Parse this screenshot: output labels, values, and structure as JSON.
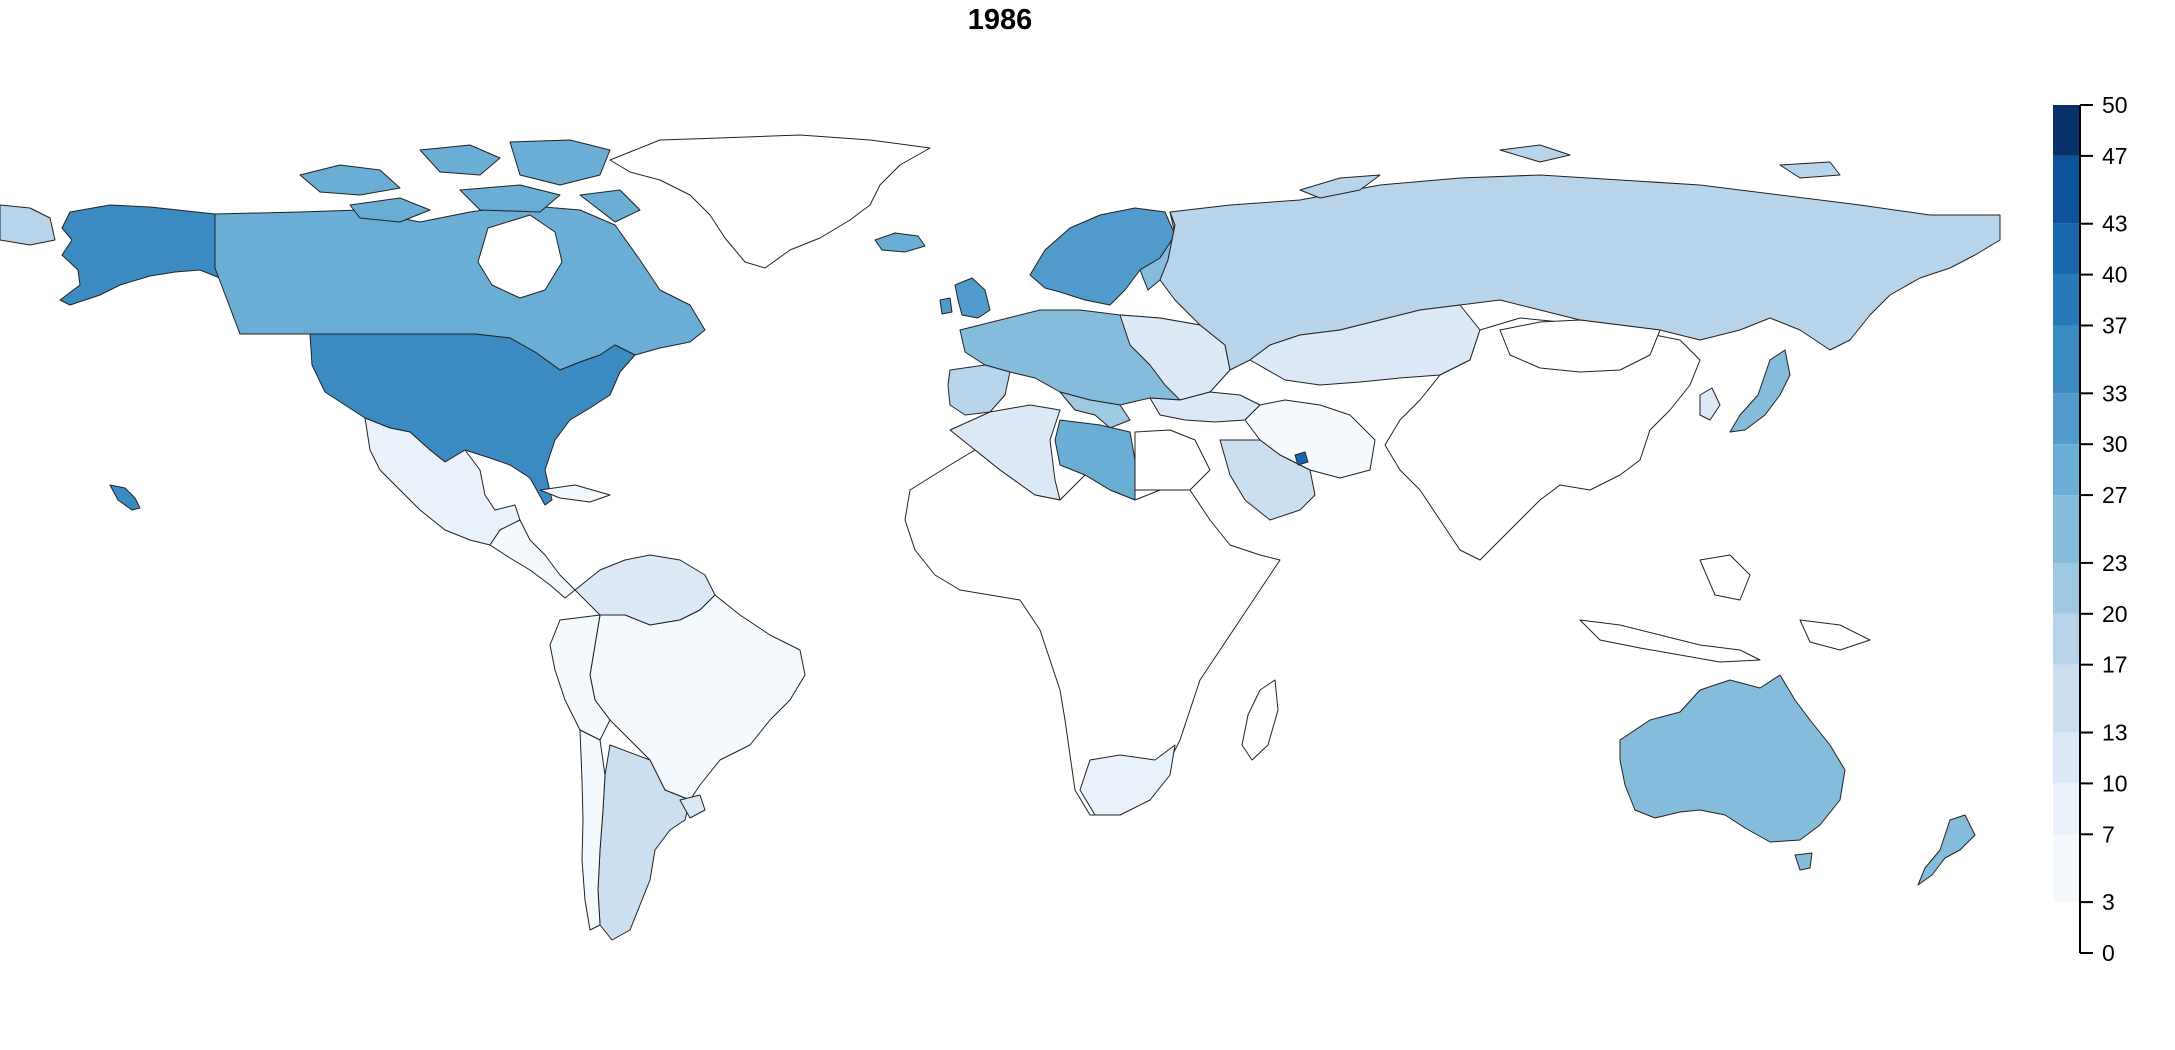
{
  "title": "1986",
  "legend": {
    "min": 0,
    "max": 50,
    "ticks": [
      {
        "value": 0,
        "label": "0"
      },
      {
        "value": 3,
        "label": "3"
      },
      {
        "value": 7,
        "label": "7"
      },
      {
        "value": 10,
        "label": "10"
      },
      {
        "value": 13,
        "label": "13"
      },
      {
        "value": 17,
        "label": "17"
      },
      {
        "value": 20,
        "label": "20"
      },
      {
        "value": 23,
        "label": "23"
      },
      {
        "value": 27,
        "label": "27"
      },
      {
        "value": 30,
        "label": "30"
      },
      {
        "value": 33,
        "label": "33"
      },
      {
        "value": 37,
        "label": "37"
      },
      {
        "value": 40,
        "label": "40"
      },
      {
        "value": 43,
        "label": "43"
      },
      {
        "value": 47,
        "label": "47"
      },
      {
        "value": 50,
        "label": "50"
      }
    ],
    "bins": [
      {
        "from": 3,
        "to": 7,
        "color": "#f4f9fe"
      },
      {
        "from": 7,
        "to": 10,
        "color": "#e9f2fb"
      },
      {
        "from": 10,
        "to": 13,
        "color": "#dbe9f6"
      },
      {
        "from": 13,
        "to": 17,
        "color": "#cbdff1"
      },
      {
        "from": 17,
        "to": 20,
        "color": "#b7d4ea"
      },
      {
        "from": 20,
        "to": 23,
        "color": "#9fc9e3"
      },
      {
        "from": 23,
        "to": 27,
        "color": "#85bcdc"
      },
      {
        "from": 27,
        "to": 30,
        "color": "#6aadd5"
      },
      {
        "from": 30,
        "to": 33,
        "color": "#519ccc"
      },
      {
        "from": 33,
        "to": 37,
        "color": "#3b8bc2"
      },
      {
        "from": 37,
        "to": 40,
        "color": "#2979b9"
      },
      {
        "from": 40,
        "to": 43,
        "color": "#1966ad"
      },
      {
        "from": 43,
        "to": 47,
        "color": "#0b539a"
      },
      {
        "from": 47,
        "to": 50,
        "color": "#08306b"
      }
    ]
  }
}
